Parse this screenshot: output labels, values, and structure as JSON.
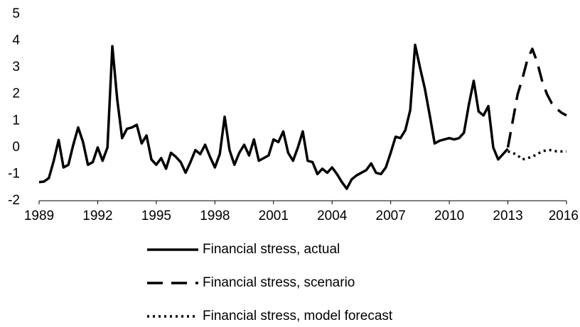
{
  "chart_data": {
    "type": "line",
    "x": [
      1989,
      1989.25,
      1989.5,
      1989.75,
      1990,
      1990.25,
      1990.5,
      1990.75,
      1991,
      1991.25,
      1991.5,
      1991.75,
      1992,
      1992.25,
      1992.5,
      1992.75,
      1993,
      1993.25,
      1993.5,
      1993.75,
      1994,
      1994.25,
      1994.5,
      1994.75,
      1995,
      1995.25,
      1995.5,
      1995.75,
      1996,
      1996.25,
      1996.5,
      1996.75,
      1997,
      1997.25,
      1997.5,
      1997.75,
      1998,
      1998.25,
      1998.5,
      1998.75,
      1999,
      1999.25,
      1999.5,
      1999.75,
      2000,
      2000.25,
      2000.5,
      2000.75,
      2001,
      2001.25,
      2001.5,
      2001.75,
      2002,
      2002.25,
      2002.5,
      2002.75,
      2003,
      2003.25,
      2003.5,
      2003.75,
      2004,
      2004.25,
      2004.5,
      2004.75,
      2005,
      2005.25,
      2005.5,
      2005.75,
      2006,
      2006.25,
      2006.5,
      2006.75,
      2007,
      2007.25,
      2007.5,
      2007.75,
      2008,
      2008.25,
      2008.5,
      2008.75,
      2009,
      2009.25,
      2009.5,
      2009.75,
      2010,
      2010.25,
      2010.5,
      2010.75,
      2011,
      2011.25,
      2011.5,
      2011.75,
      2012,
      2012.25,
      2012.5,
      2012.75,
      2013,
      2013.25,
      2013.5,
      2013.75,
      2014,
      2014.25,
      2014.5,
      2014.75,
      2015,
      2015.25,
      2015.5,
      2015.75,
      2016
    ],
    "series": [
      {
        "name": "Financial stress, actual",
        "color": "#000000",
        "style": "solid",
        "values": [
          -1.3,
          -1.28,
          -1.15,
          -0.5,
          0.28,
          -0.75,
          -0.65,
          0.1,
          0.75,
          0.2,
          -0.65,
          -0.55,
          0,
          -0.5,
          0,
          3.8,
          1.8,
          0.35,
          0.7,
          0.75,
          0.85,
          0.15,
          0.45,
          -0.45,
          -0.65,
          -0.4,
          -0.8,
          -0.2,
          -0.35,
          -0.55,
          -0.95,
          -0.55,
          -0.1,
          -0.25,
          0.1,
          -0.35,
          -0.75,
          -0.25,
          1.15,
          -0.1,
          -0.65,
          -0.2,
          0.1,
          -0.3,
          0.3,
          -0.5,
          -0.4,
          -0.3,
          0.3,
          0.2,
          0.6,
          -0.2,
          -0.5,
          0,
          0.6,
          -0.5,
          -0.55,
          -1,
          -0.8,
          -0.95,
          -0.75,
          -1,
          -1.3,
          -1.55,
          -1.2,
          -1.05,
          -0.95,
          -0.85,
          -0.6,
          -0.95,
          -1,
          -0.75,
          -0.2,
          0.4,
          0.35,
          0.65,
          1.4,
          3.85,
          3,
          2.2,
          1.2,
          0.15,
          0.25,
          0.3,
          0.35,
          0.3,
          0.35,
          0.55,
          1.6,
          2.5,
          1.35,
          1.2,
          1.55,
          0,
          -0.45,
          -0.25,
          -0.05,
          null,
          null,
          null,
          null,
          null,
          null,
          null,
          null,
          null,
          null,
          null,
          null
        ]
      },
      {
        "name": "Financial stress, scenario",
        "color": "#000000",
        "style": "dashed",
        "values": [
          null,
          null,
          null,
          null,
          null,
          null,
          null,
          null,
          null,
          null,
          null,
          null,
          null,
          null,
          null,
          null,
          null,
          null,
          null,
          null,
          null,
          null,
          null,
          null,
          null,
          null,
          null,
          null,
          null,
          null,
          null,
          null,
          null,
          null,
          null,
          null,
          null,
          null,
          null,
          null,
          null,
          null,
          null,
          null,
          null,
          null,
          null,
          null,
          null,
          null,
          null,
          null,
          null,
          null,
          null,
          null,
          null,
          null,
          null,
          null,
          null,
          null,
          null,
          null,
          null,
          null,
          null,
          null,
          null,
          null,
          null,
          null,
          null,
          null,
          null,
          null,
          null,
          null,
          null,
          null,
          null,
          null,
          null,
          null,
          null,
          null,
          null,
          null,
          null,
          null,
          null,
          null,
          null,
          null,
          null,
          null,
          0,
          1,
          2,
          2.6,
          3.3,
          3.7,
          3.2,
          2.5,
          2,
          1.65,
          1.45,
          1.3,
          1.2
        ]
      },
      {
        "name": "Financial stress, model forecast",
        "color": "#000000",
        "style": "dotted",
        "values": [
          null,
          null,
          null,
          null,
          null,
          null,
          null,
          null,
          null,
          null,
          null,
          null,
          null,
          null,
          null,
          null,
          null,
          null,
          null,
          null,
          null,
          null,
          null,
          null,
          null,
          null,
          null,
          null,
          null,
          null,
          null,
          null,
          null,
          null,
          null,
          null,
          null,
          null,
          null,
          null,
          null,
          null,
          null,
          null,
          null,
          null,
          null,
          null,
          null,
          null,
          null,
          null,
          null,
          null,
          null,
          null,
          null,
          null,
          null,
          null,
          null,
          null,
          null,
          null,
          null,
          null,
          null,
          null,
          null,
          null,
          null,
          null,
          null,
          null,
          null,
          null,
          null,
          null,
          null,
          null,
          null,
          null,
          null,
          null,
          null,
          null,
          null,
          null,
          null,
          null,
          null,
          null,
          null,
          null,
          null,
          null,
          -0.15,
          -0.2,
          -0.3,
          -0.45,
          -0.4,
          -0.35,
          -0.25,
          -0.15,
          -0.1,
          -0.1,
          -0.15,
          -0.15,
          -0.15
        ]
      }
    ],
    "xlim": [
      1989,
      2016
    ],
    "xticks": [
      1989,
      1992,
      1995,
      1998,
      2001,
      2004,
      2007,
      2010,
      2013,
      2016
    ],
    "ylim": [
      -2,
      5
    ],
    "yticks": [
      -2,
      -1,
      0,
      1,
      2,
      3,
      4,
      5
    ],
    "grid": false,
    "legend": "bottom"
  }
}
